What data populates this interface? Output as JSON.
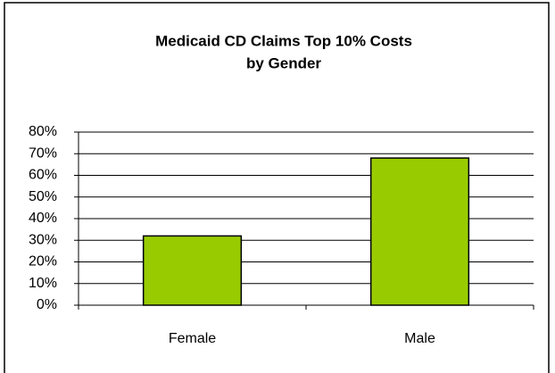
{
  "chart_data": {
    "type": "bar",
    "title": [
      "Medicaid CD Claims Top 10% Costs",
      "by Gender"
    ],
    "categories": [
      "Female",
      "Male"
    ],
    "values": [
      32,
      68
    ],
    "color": "#99cc00",
    "ylim": [
      0,
      80
    ],
    "yticks": [
      {
        "value": 0,
        "label": "0%"
      },
      {
        "value": 10,
        "label": "10%"
      },
      {
        "value": 20,
        "label": "20%"
      },
      {
        "value": 30,
        "label": "30%"
      },
      {
        "value": 40,
        "label": "40%"
      },
      {
        "value": 50,
        "label": "50%"
      },
      {
        "value": 60,
        "label": "60%"
      },
      {
        "value": 70,
        "label": "70%"
      },
      {
        "value": 80,
        "label": "80%"
      }
    ],
    "grid": true
  }
}
